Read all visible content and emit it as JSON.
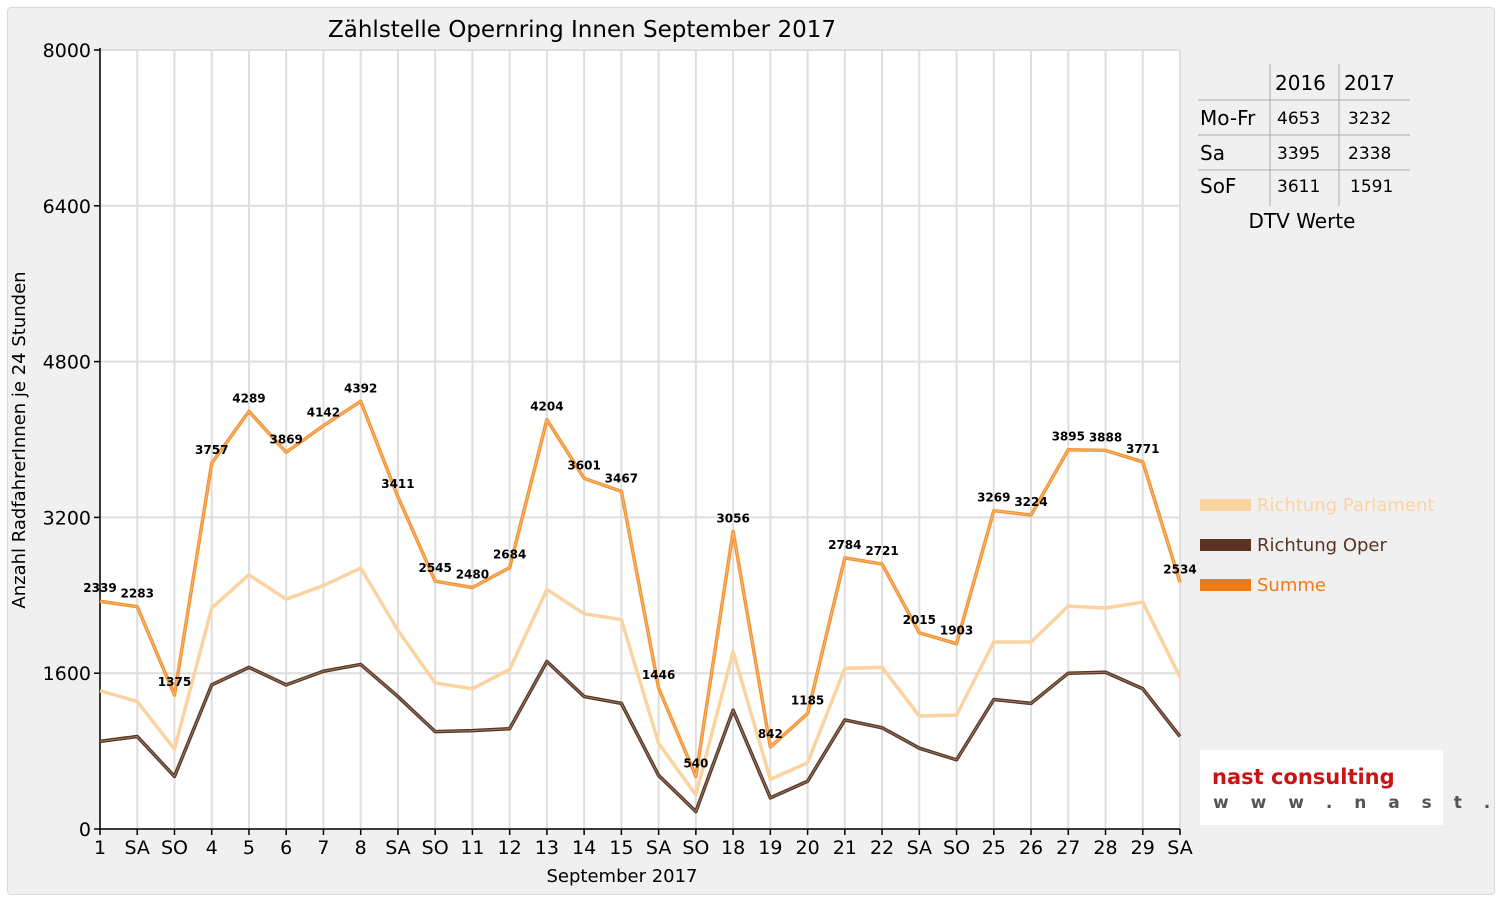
{
  "colors": {
    "parlament": "#fbd3a1",
    "oper": "#5a3420",
    "summe": "#f39230",
    "summe_legend": "#f07a15",
    "sunday": "#e00000",
    "grid": "#dedede",
    "logo_red": "#c81414",
    "logo_grey": "#555555"
  },
  "chart_data": {
    "type": "line",
    "title": "Zählstelle Opernring Innen September 2017",
    "xlabel": "September 2017",
    "ylabel": "Anzahl RadfahrerInnen je 24 Stunden",
    "ylim": [
      0,
      8000
    ],
    "yticks": [
      0,
      1600,
      3200,
      4800,
      6400,
      8000
    ],
    "grid": true,
    "legend_position": "right",
    "categories": [
      "1",
      "SA",
      "SO",
      "4",
      "5",
      "6",
      "7",
      "8",
      "SA",
      "SO",
      "11",
      "12",
      "13",
      "14",
      "15",
      "SA",
      "SO",
      "18",
      "19",
      "20",
      "21",
      "22",
      "SA",
      "SO",
      "25",
      "26",
      "27",
      "28",
      "29",
      "SA"
    ],
    "category_highlight": [
      false,
      false,
      true,
      false,
      false,
      false,
      false,
      false,
      false,
      true,
      false,
      false,
      false,
      false,
      false,
      false,
      true,
      false,
      false,
      false,
      false,
      false,
      false,
      true,
      false,
      false,
      false,
      false,
      false,
      false
    ],
    "series": [
      {
        "name": "Richtung Parlament",
        "color_key": "parlament",
        "values": [
          1420,
          1310,
          820,
          2270,
          2610,
          2360,
          2500,
          2680,
          2040,
          1500,
          1440,
          1640,
          2460,
          2210,
          2150,
          880,
          350,
          1820,
          510,
          680,
          1650,
          1660,
          1160,
          1170,
          1920,
          1920,
          2290,
          2270,
          2330,
          1560
        ]
      },
      {
        "name": "Richtung Oper",
        "color_key": "oper",
        "values": [
          900,
          950,
          540,
          1480,
          1660,
          1480,
          1620,
          1690,
          1360,
          1000,
          1010,
          1030,
          1720,
          1360,
          1290,
          550,
          180,
          1220,
          320,
          490,
          1120,
          1040,
          830,
          710,
          1330,
          1290,
          1600,
          1610,
          1440,
          950
        ]
      },
      {
        "name": "Summe",
        "color_key": "summe",
        "values": [
          2339,
          2283,
          1375,
          3757,
          4289,
          3869,
          4142,
          4392,
          3411,
          2545,
          2480,
          2684,
          4204,
          3601,
          3467,
          1446,
          540,
          3056,
          842,
          1185,
          2784,
          2721,
          2015,
          1903,
          3269,
          3224,
          3895,
          3888,
          3771,
          2534
        ],
        "labels": [
          "2339",
          "2283",
          "1375",
          "3757",
          "4289",
          "3869",
          "4142",
          "4392",
          "3411",
          "2545",
          "2480",
          "2684",
          "4204",
          "3601",
          "3467",
          "1446",
          "540",
          "3056",
          "842",
          "1185",
          "2784",
          "2721",
          "2015",
          "1903",
          "3269",
          "3224",
          "3895",
          "3888",
          "3771",
          "2534"
        ]
      }
    ]
  },
  "dtv_table": {
    "caption": "DTV Werte",
    "headers": [
      "2016",
      "2017"
    ],
    "rows": [
      {
        "label": "Mo-Fr",
        "v2016": "4653",
        "v2017": "3232"
      },
      {
        "label": "Sa",
        "v2016": "3395",
        "v2017": "2338"
      },
      {
        "label": "SoF",
        "v2016": "3611",
        "v2017": "1591"
      }
    ]
  },
  "logo": {
    "name": "nast consulting",
    "url": "www.nast.at"
  }
}
